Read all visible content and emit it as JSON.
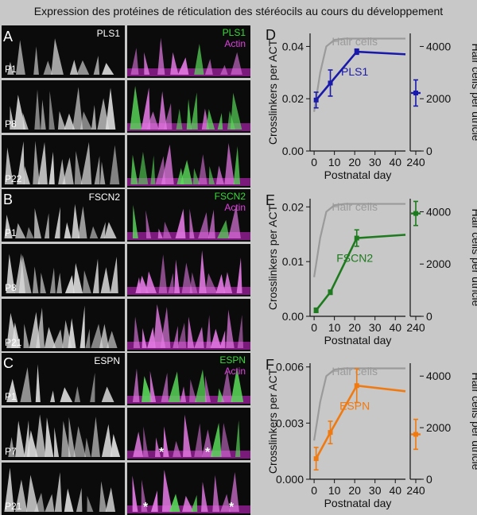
{
  "title": "Expression des protéines de réticulation des stéréocils au cours du développement",
  "panels": {
    "A": {
      "letter": "A",
      "protein": "PLS1",
      "merge_protein": "PLS1",
      "actin": "Actin",
      "ages": [
        "P1",
        "P8",
        "P22"
      ]
    },
    "B": {
      "letter": "B",
      "protein": "FSCN2",
      "merge_protein": "FSCN2",
      "actin": "Actin",
      "ages": [
        "P1",
        "P8",
        "P21"
      ]
    },
    "C": {
      "letter": "C",
      "protein": "ESPN",
      "merge_protein": "ESPN",
      "actin": "Actin",
      "ages": [
        "P1",
        "P7",
        "P21"
      ],
      "asterisk": "*"
    }
  },
  "colors": {
    "hair_cells": "#9a9a9a",
    "pls1": "#1a1aaa",
    "fscn2": "#1e7a1e",
    "espn": "#f07a10",
    "green_channel": "#3ad93a",
    "magenta_channel": "#e040e0"
  },
  "chart_data": [
    {
      "panel": "D",
      "type": "line",
      "xlabel": "Postnatal day",
      "ylabel": "Crosslinkers per ACT",
      "ylabel_right": "Hair cells per utricle",
      "x_ticks": [
        "0",
        "10",
        "20",
        "30",
        "40"
      ],
      "x_break_tick": "240",
      "y_ticks": [
        "0.00",
        "0.02",
        "0.04"
      ],
      "ylim": [
        0,
        0.045
      ],
      "y_right_ticks": [
        "0",
        "2000",
        "4000"
      ],
      "ylim_right": [
        0,
        4500
      ],
      "series": [
        {
          "name": "Hair cells",
          "axis": "right",
          "x": [
            0,
            3,
            6,
            10,
            15,
            21,
            30,
            45
          ],
          "y": [
            1500,
            3000,
            4000,
            4250,
            4300,
            4300,
            4300,
            4300
          ]
        },
        {
          "name": "PLS1",
          "axis": "left",
          "x": [
            1,
            8,
            21,
            45
          ],
          "y": [
            0.0195,
            0.026,
            0.038,
            0.037
          ],
          "err": [
            0.003,
            0.005,
            0.001,
            0
          ],
          "break_point": {
            "x": 240,
            "y": 0.0222,
            "err": 0.005
          }
        }
      ]
    },
    {
      "panel": "E",
      "type": "line",
      "xlabel": "Postnatal day",
      "ylabel": "Crosslinkers per ACT",
      "ylabel_right": "Hair cells per utricle",
      "x_ticks": [
        "0",
        "10",
        "20",
        "30",
        "40"
      ],
      "x_break_tick": "240",
      "y_ticks": [
        "0.00",
        "0.01",
        "0.02"
      ],
      "ylim": [
        0,
        0.0215
      ],
      "y_right_ticks": [
        "0",
        "2000",
        "4000"
      ],
      "ylim_right": [
        0,
        4500
      ],
      "series": [
        {
          "name": "Hair cells",
          "axis": "right",
          "x": [
            0,
            3,
            6,
            10,
            15,
            21,
            30,
            45
          ],
          "y": [
            1500,
            3000,
            4000,
            4250,
            4300,
            4300,
            4300,
            4300
          ]
        },
        {
          "name": "FSCN2",
          "axis": "left",
          "x": [
            1,
            8,
            21,
            45
          ],
          "y": [
            0.0011,
            0.0044,
            0.0143,
            0.0149
          ],
          "err": [
            0.0004,
            0.0004,
            0.0015,
            0
          ],
          "break_point": {
            "x": 240,
            "y": 0.0188,
            "err": 0.0022
          }
        }
      ]
    },
    {
      "panel": "F",
      "type": "line",
      "xlabel": "Postnatal day",
      "ylabel": "Crosslinkers per ACT",
      "ylabel_right": "Hair cells per utricle",
      "x_ticks": [
        "0",
        "10",
        "20",
        "30",
        "40"
      ],
      "x_break_tick": "240",
      "y_ticks": [
        "0.000",
        "0.003",
        "0.006"
      ],
      "ylim": [
        0,
        0.0062
      ],
      "y_right_ticks": [
        "0",
        "2000",
        "4000"
      ],
      "ylim_right": [
        0,
        4500
      ],
      "series": [
        {
          "name": "Hair cells",
          "axis": "right",
          "x": [
            0,
            3,
            6,
            10,
            15,
            21,
            30,
            45
          ],
          "y": [
            1500,
            3000,
            4000,
            4250,
            4300,
            4300,
            4300,
            4300
          ]
        },
        {
          "name": "ESPN",
          "axis": "left",
          "x": [
            1,
            8,
            21,
            45
          ],
          "y": [
            0.0011,
            0.0025,
            0.005,
            0.0047
          ],
          "err": [
            0.0006,
            0.0006,
            0.0009,
            0
          ],
          "break_point": {
            "x": 240,
            "y": 0.0024,
            "err": 0.0008
          }
        }
      ]
    }
  ]
}
